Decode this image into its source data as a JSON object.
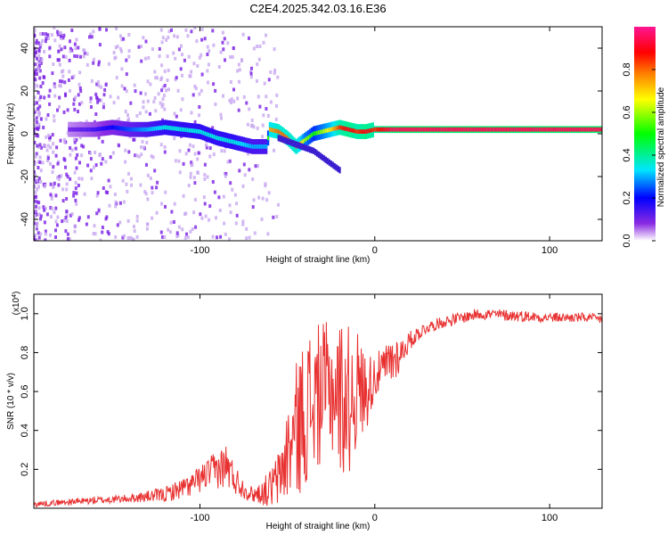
{
  "title": "C2E4.2025.342.03.16.E36",
  "colors": {
    "signal": "#e83030",
    "frame": "#000000",
    "background": "#ffffff"
  },
  "chart_data": [
    {
      "type": "heatmap",
      "name": "spectrogram",
      "xlabel": "Height of straight line (km)",
      "ylabel": "Frequency (Hz)",
      "xlim": [
        -195,
        130
      ],
      "ylim": [
        -50,
        50
      ],
      "xticks": [
        -100,
        0,
        100
      ],
      "xtick_labels": [
        "-100",
        "0",
        "100"
      ],
      "yticks": [
        -40,
        -20,
        0,
        20,
        40
      ],
      "ytick_labels": [
        "-40",
        "-20",
        "0",
        "20",
        "40"
      ],
      "ridge": {
        "x": [
          -175,
          -160,
          -150,
          -140,
          -130,
          -120,
          -110,
          -100,
          -90,
          -80,
          -70,
          -62,
          -60,
          -55,
          -50,
          -45,
          -40,
          -35,
          -30,
          -25,
          -20,
          -15,
          -10,
          -5,
          0,
          5,
          10,
          20,
          40,
          60,
          80,
          100,
          120,
          130
        ],
        "freq": [
          2,
          2,
          3,
          2,
          2,
          3,
          2,
          1,
          -2,
          -4,
          -6,
          -6,
          2,
          1,
          -2,
          -6,
          -3,
          0,
          1,
          2,
          3,
          2,
          1,
          1,
          2,
          2,
          2,
          2,
          2,
          2,
          2,
          2,
          2,
          2
        ],
        "amplitude": [
          0.1,
          0.15,
          0.2,
          0.25,
          0.3,
          0.35,
          0.35,
          0.35,
          0.35,
          0.35,
          0.3,
          0.3,
          0.75,
          0.8,
          0.8,
          0.8,
          0.6,
          0.5,
          0.6,
          0.7,
          0.85,
          0.9,
          0.85,
          0.9,
          0.85,
          0.9,
          0.95,
          0.95,
          0.95,
          0.95,
          0.95,
          0.95,
          0.95,
          0.95
        ]
      },
      "branch": {
        "x": [
          -55,
          -45,
          -35,
          -30,
          -25,
          -20
        ],
        "freq": [
          -2,
          -5,
          -8,
          -11,
          -14,
          -17
        ]
      }
    },
    {
      "type": "colorbar",
      "name": "amplitude-colorbar",
      "label": "Normalized spectral amplitude",
      "lim": [
        0,
        1
      ],
      "ticks": [
        0.0,
        0.2,
        0.4,
        0.6,
        0.8
      ],
      "tick_labels": [
        "0.0",
        "0.2",
        "0.4",
        "0.6",
        "0.8"
      ],
      "colors": [
        "#ffffff",
        "#8a2be2",
        "#0000ff",
        "#00e5ff",
        "#00ff00",
        "#ffff00",
        "#ff8000",
        "#ff0000",
        "#ff1493"
      ]
    },
    {
      "type": "line",
      "name": "snr",
      "xlabel": "Height of straight line (km)",
      "ylabel": "SNR (10 * v/v)",
      "multiplier": "(x10",
      "multiplier_exp": "4",
      "multiplier_close": ")",
      "xlim": [
        -195,
        130
      ],
      "ylim": [
        0,
        1.1
      ],
      "xticks": [
        -100,
        0,
        100
      ],
      "xtick_labels": [
        "-100",
        "0",
        "100"
      ],
      "yticks": [
        0.2,
        0.4,
        0.6,
        0.8,
        1.0
      ],
      "ytick_labels": [
        "0.2",
        "0.4",
        "0.6",
        "0.8",
        "1.0"
      ],
      "x": [
        -195,
        -180,
        -160,
        -140,
        -120,
        -105,
        -95,
        -90,
        -85,
        -80,
        -75,
        -70,
        -65,
        -60,
        -55,
        -50,
        -45,
        -40,
        -35,
        -30,
        -25,
        -20,
        -15,
        -10,
        -5,
        0,
        5,
        10,
        15,
        20,
        25,
        30,
        40,
        50,
        60,
        80,
        100,
        120,
        130
      ],
      "value": [
        0.02,
        0.03,
        0.04,
        0.05,
        0.07,
        0.12,
        0.18,
        0.2,
        0.22,
        0.15,
        0.1,
        0.07,
        0.08,
        0.1,
        0.15,
        0.28,
        0.4,
        0.5,
        0.55,
        0.6,
        0.62,
        0.58,
        0.55,
        0.62,
        0.6,
        0.68,
        0.72,
        0.76,
        0.8,
        0.86,
        0.9,
        0.93,
        0.96,
        0.98,
        1.0,
        0.99,
        0.98,
        0.98,
        0.97
      ],
      "spread": [
        0.015,
        0.015,
        0.02,
        0.02,
        0.04,
        0.06,
        0.08,
        0.1,
        0.12,
        0.08,
        0.05,
        0.04,
        0.06,
        0.1,
        0.15,
        0.25,
        0.35,
        0.4,
        0.4,
        0.35,
        0.35,
        0.4,
        0.4,
        0.3,
        0.2,
        0.12,
        0.1,
        0.15,
        0.08,
        0.05,
        0.04,
        0.03,
        0.03,
        0.03,
        0.03,
        0.03,
        0.025,
        0.025,
        0.025
      ]
    }
  ]
}
